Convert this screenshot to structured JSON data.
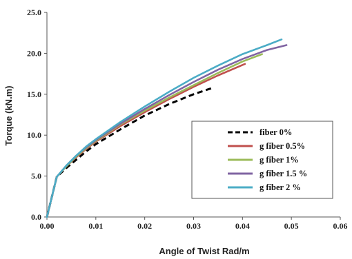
{
  "chart_data": {
    "type": "line",
    "title": "",
    "xlabel": "Angle of Twist  Rad/m",
    "ylabel": "Torque (kN.m)",
    "xlim": [
      0,
      0.06
    ],
    "ylim": [
      0,
      25
    ],
    "x_ticks": [
      "0.00",
      "0.01",
      "0.02",
      "0.03",
      "0.04",
      "0.05",
      "0.06"
    ],
    "y_ticks": [
      "0.0",
      "5.0",
      "10.0",
      "15.0",
      "20.0",
      "25.0"
    ],
    "grid": false,
    "legend_position": "bottom-right",
    "series": [
      {
        "name": "fiber 0%",
        "color": "#000000",
        "dashed": true,
        "x": [
          0,
          0.002,
          0.004,
          0.006,
          0.008,
          0.01,
          0.015,
          0.02,
          0.025,
          0.03,
          0.034
        ],
        "y": [
          0,
          4.9,
          6.0,
          7.0,
          8.0,
          8.9,
          10.7,
          12.4,
          13.8,
          15.0,
          15.8
        ]
      },
      {
        "name": "g fiber 0.5%",
        "color": "#c0504d",
        "dashed": false,
        "x": [
          0,
          0.002,
          0.004,
          0.006,
          0.008,
          0.01,
          0.015,
          0.02,
          0.025,
          0.03,
          0.035,
          0.0405
        ],
        "y": [
          0,
          4.9,
          6.2,
          7.3,
          8.3,
          9.2,
          11.1,
          12.8,
          14.4,
          15.9,
          17.3,
          18.7
        ]
      },
      {
        "name": "g fiber 1%",
        "color": "#9bbb59",
        "dashed": false,
        "x": [
          0,
          0.002,
          0.004,
          0.006,
          0.008,
          0.01,
          0.015,
          0.02,
          0.025,
          0.03,
          0.035,
          0.04,
          0.044
        ],
        "y": [
          0,
          4.9,
          6.2,
          7.4,
          8.4,
          9.3,
          11.3,
          13.0,
          14.6,
          16.1,
          17.6,
          19.0,
          19.9
        ]
      },
      {
        "name": "g fiber 1.5 %",
        "color": "#8064a2",
        "dashed": false,
        "x": [
          0,
          0.002,
          0.004,
          0.006,
          0.008,
          0.01,
          0.015,
          0.02,
          0.025,
          0.03,
          0.035,
          0.04,
          0.045,
          0.049
        ],
        "y": [
          0,
          4.9,
          6.3,
          7.5,
          8.5,
          9.4,
          11.4,
          13.2,
          14.9,
          16.5,
          18.0,
          19.3,
          20.4,
          21.0
        ]
      },
      {
        "name": "g fiber 2 %",
        "color": "#4bacc6",
        "dashed": false,
        "x": [
          0,
          0.002,
          0.004,
          0.006,
          0.008,
          0.01,
          0.015,
          0.02,
          0.025,
          0.03,
          0.035,
          0.04,
          0.045,
          0.048
        ],
        "y": [
          0,
          4.9,
          6.3,
          7.5,
          8.6,
          9.5,
          11.6,
          13.5,
          15.3,
          17.0,
          18.5,
          19.9,
          21.0,
          21.7
        ]
      }
    ]
  }
}
